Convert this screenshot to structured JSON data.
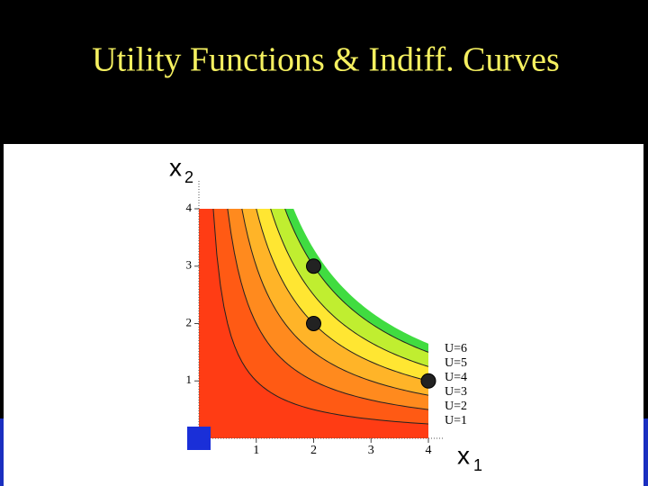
{
  "chart_data": {
    "type": "contour",
    "title": "Utility Functions & Indiff. Curves",
    "x_label": "x",
    "x_label_sub": "1",
    "y_label": "x",
    "y_label_sub": "2",
    "xlim": [
      0,
      4
    ],
    "ylim": [
      0,
      4
    ],
    "xticks": [
      1,
      2,
      3,
      4
    ],
    "yticks": [
      1,
      2,
      3,
      4
    ],
    "levels": [
      {
        "label": "U=1",
        "value": 1
      },
      {
        "label": "U=2",
        "value": 2
      },
      {
        "label": "U=3",
        "value": 3
      },
      {
        "label": "U=4",
        "value": 4
      },
      {
        "label": "U=5",
        "value": 5
      },
      {
        "label": "U=6",
        "value": 6
      }
    ],
    "band_colors": [
      "#ff3c14",
      "#ff5a14",
      "#ff8a1e",
      "#ffb428",
      "#ffe632",
      "#c0ee30",
      "#40dc40"
    ],
    "points": {
      "x": [
        2,
        2,
        4
      ],
      "y": [
        3,
        2,
        1
      ]
    }
  }
}
